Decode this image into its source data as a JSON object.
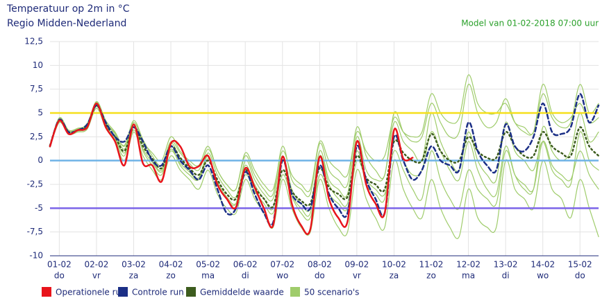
{
  "chart_data": {
    "type": "line",
    "title": "Temperatuur op 2m in °C",
    "subtitle": "Regio Midden-Nederland",
    "annotation": "Model van 01-02-2018 07:00 uur",
    "grid": true,
    "xlim": [
      -0.25,
      14.5
    ],
    "ylim": [
      -10,
      12.5
    ],
    "yticks": [
      -10,
      {
        "value": -7.5,
        "label": "-7,5"
      },
      -5,
      {
        "value": -2.5,
        "label": "-2,5"
      },
      0,
      {
        "value": 2.5,
        "label": "2,5"
      },
      5,
      {
        "value": 7.5,
        "label": "7,5"
      },
      10,
      {
        "value": 12.5,
        "label": "12,5"
      }
    ],
    "xticks": [
      {
        "value": 0,
        "label": "01-02",
        "sublabel": "do"
      },
      {
        "value": 1,
        "label": "02-02",
        "sublabel": "vr"
      },
      {
        "value": 2,
        "label": "03-02",
        "sublabel": "za"
      },
      {
        "value": 3,
        "label": "04-02",
        "sublabel": "zo"
      },
      {
        "value": 4,
        "label": "05-02",
        "sublabel": "ma"
      },
      {
        "value": 5,
        "label": "06-02",
        "sublabel": "di"
      },
      {
        "value": 6,
        "label": "07-02",
        "sublabel": "wo"
      },
      {
        "value": 7,
        "label": "08-02",
        "sublabel": "do"
      },
      {
        "value": 8,
        "label": "09-02",
        "sublabel": "vr"
      },
      {
        "value": 9,
        "label": "10-02",
        "sublabel": "za"
      },
      {
        "value": 10,
        "label": "11-02",
        "sublabel": "zo"
      },
      {
        "value": 11,
        "label": "12-02",
        "sublabel": "ma"
      },
      {
        "value": 12,
        "label": "13-02",
        "sublabel": "di"
      },
      {
        "value": 13,
        "label": "14-02",
        "sublabel": "wo"
      },
      {
        "value": 14,
        "label": "15-02",
        "sublabel": "do"
      }
    ],
    "reference_lines": [
      {
        "value": 5,
        "color": "#f5df1a"
      },
      {
        "value": 0,
        "color": "#6fb3e6"
      },
      {
        "value": -5,
        "color": "#7a63e8"
      }
    ],
    "x": [
      -0.25,
      0,
      0.25,
      0.5,
      0.75,
      1,
      1.25,
      1.5,
      1.75,
      2,
      2.25,
      2.5,
      2.75,
      3,
      3.25,
      3.5,
      3.75,
      4,
      4.25,
      4.5,
      4.75,
      5,
      5.25,
      5.5,
      5.75,
      6,
      6.25,
      6.5,
      6.75,
      7,
      7.25,
      7.5,
      7.75,
      8,
      8.25,
      8.5,
      8.75,
      9,
      9.25,
      9.5,
      9.75,
      10,
      10.25,
      10.5,
      10.75,
      11,
      11.25,
      11.5,
      11.75,
      12,
      12.25,
      12.5,
      12.75,
      13,
      13.25,
      13.5,
      13.75,
      14,
      14.25,
      14.5
    ],
    "series": [
      {
        "name": "Operationele run",
        "color": "#e8141b",
        "values": [
          1.5,
          4.2,
          2.8,
          3.2,
          3.5,
          6.0,
          3.5,
          2.0,
          -0.5,
          3.8,
          -0.3,
          -0.5,
          -2.2,
          1.8,
          1.5,
          -0.6,
          -0.6,
          0.5,
          -2.5,
          -4.0,
          -4.9,
          -0.8,
          -2.8,
          -5.0,
          -6.8,
          0.4,
          -4.5,
          -6.8,
          -7.2,
          0.4,
          -4.0,
          -6.0,
          -6.4,
          2.0,
          -2.5,
          -4.5,
          -5.5,
          3.2,
          0.2,
          0.3,
          null,
          null,
          null,
          null,
          null,
          null,
          null,
          null,
          null,
          null,
          null,
          null,
          null,
          null,
          null,
          null,
          null,
          null,
          null,
          null
        ]
      },
      {
        "name": "Controle run",
        "color": "#1b2f86",
        "values": [
          1.5,
          4.3,
          3,
          3.2,
          3.8,
          5.8,
          4,
          2.5,
          2.0,
          3.5,
          2,
          0,
          -0.5,
          1.5,
          0,
          -1,
          -2,
          -0.5,
          -3,
          -5.5,
          -5,
          -1.2,
          -3.5,
          -5.5,
          -6.5,
          0,
          -3.5,
          -4.5,
          -5,
          -0.5,
          -3.5,
          -5,
          -5.5,
          1.5,
          -2,
          -4,
          -5.5,
          2.5,
          0,
          -2,
          -1,
          1.5,
          0,
          -0.5,
          -1,
          4,
          1,
          -0.5,
          -1,
          3.8,
          1.5,
          1,
          2.5,
          6,
          3,
          2.8,
          3.5,
          7,
          4,
          5.8
        ]
      },
      {
        "name": "Gemiddelde waarde",
        "color": "#3d5c1e",
        "values": [
          1.6,
          4.2,
          3,
          3.2,
          3.6,
          5.8,
          3.8,
          2.5,
          1.0,
          3.5,
          1.5,
          0.2,
          -0.8,
          1.5,
          0.3,
          -0.8,
          -1.5,
          0,
          -2,
          -3.5,
          -4,
          -1,
          -2.8,
          -4,
          -4.8,
          -1,
          -3.2,
          -4.2,
          -4.5,
          -0.8,
          -2.8,
          -3.5,
          -3.8,
          0.5,
          -1.8,
          -2.5,
          -3,
          2,
          0.8,
          0,
          0,
          2.8,
          1,
          0,
          0,
          2.5,
          1,
          0.3,
          0.3,
          3,
          1.5,
          0.5,
          0.5,
          3,
          1.5,
          0.8,
          0.5,
          3.5,
          1.5,
          0.5
        ]
      },
      {
        "name": "50 scenario's",
        "color": "#9fcc6b",
        "members": [
          [
            1.6,
            4.5,
            3.2,
            3.4,
            3.8,
            6.2,
            4.2,
            3,
            1.5,
            4,
            2,
            0.8,
            0,
            2.5,
            1,
            0,
            -0.5,
            1.5,
            -1,
            -2.5,
            -3,
            0.5,
            -1.5,
            -3,
            -3.5,
            1.5,
            -2,
            -3,
            -3.5,
            1.8,
            -1,
            -2,
            -2.5,
            3.5,
            0.5,
            -1,
            -1.5,
            5,
            3,
            2,
            2.5,
            6,
            4,
            2.5,
            3,
            8,
            5,
            3.5,
            4,
            6.5,
            4,
            3,
            3,
            7,
            4.5,
            3.5,
            4,
            8,
            5,
            6
          ],
          [
            1.4,
            4,
            2.8,
            3,
            3.3,
            5.5,
            3.4,
            2,
            0,
            3,
            0.5,
            -1,
            -2,
            0.5,
            -1,
            -2,
            -3,
            -1,
            -3.5,
            -5,
            -5.5,
            -2,
            -4,
            -5.5,
            -7,
            -2,
            -5,
            -7,
            -7.5,
            -2,
            -5,
            -7,
            -7.5,
            -1,
            -4,
            -6,
            -7,
            0,
            -3,
            -5,
            -6,
            -2,
            -5,
            -7,
            -8,
            -3,
            -6,
            -7,
            -7,
            0,
            -3,
            -4,
            -5,
            0,
            -3,
            -4,
            -6,
            -2,
            -5,
            -8
          ],
          [
            1.5,
            4.2,
            3,
            3.1,
            3.5,
            5.9,
            3.6,
            2.2,
            0.5,
            3.8,
            1,
            -0.5,
            -1.5,
            1.2,
            -0.5,
            -1.5,
            -2,
            0.5,
            -2.5,
            -4,
            -4.5,
            0,
            -2,
            -3.5,
            -4,
            0.5,
            -3,
            -4.5,
            -5,
            1,
            -2,
            -3,
            -3.5,
            2.5,
            -1,
            -2,
            -1.5,
            4,
            2,
            1,
            0,
            5,
            2,
            0,
            -1,
            3,
            0,
            -1.5,
            -2,
            4,
            1,
            0,
            -1,
            2,
            -1,
            -2,
            -2.5,
            3,
            0,
            -1
          ],
          [
            1.7,
            4.3,
            3.1,
            3.3,
            3.7,
            6,
            3.9,
            2.8,
            1.2,
            3.6,
            1.8,
            0,
            -1,
            1.8,
            0.2,
            -1,
            -1.8,
            0.8,
            -1.5,
            -3,
            -3.8,
            -0.5,
            -2.5,
            -4,
            -5,
            0,
            -3.5,
            -5,
            -5.5,
            0.5,
            -2.5,
            -4,
            -4.5,
            1,
            -2.5,
            -3.5,
            -4,
            2.5,
            0,
            -1.5,
            -1,
            3,
            1,
            -1,
            -2,
            2,
            -1,
            -3,
            -3.5,
            1.5,
            -1.5,
            -3,
            -3,
            3.5,
            1,
            0,
            1,
            5,
            2,
            3
          ],
          [
            1.5,
            4.1,
            2.9,
            3.2,
            3.6,
            5.7,
            3.7,
            2.4,
            0.8,
            3.2,
            1.2,
            -0.2,
            -1.2,
            1,
            -0.3,
            -1.2,
            -2,
            0.2,
            -2.2,
            -3.8,
            -4.5,
            -1.5,
            -3.2,
            -4.5,
            -5.5,
            -1.5,
            -3.8,
            -5.5,
            -6,
            -1.5,
            -3.5,
            -4.5,
            -5,
            0,
            -2,
            -3,
            -3.5,
            1,
            -1,
            -3,
            -4,
            1,
            -2,
            -4,
            -5,
            -1,
            -3,
            -4,
            -4.5,
            1,
            -1.5,
            -2.5,
            -3,
            2,
            -0.5,
            -1.5,
            -2,
            1,
            -1.5,
            -3
          ],
          [
            1.6,
            4.4,
            3.1,
            3.3,
            3.9,
            6.1,
            4,
            2.9,
            1.6,
            4.2,
            2.2,
            0.5,
            -0.5,
            2,
            0.8,
            -0.3,
            -1,
            1.2,
            -1,
            -2.5,
            -3,
            0.8,
            -1,
            -2.5,
            -3,
            1,
            -1.5,
            -2.5,
            -3,
            2,
            0,
            -1,
            -1.5,
            3,
            1,
            0,
            0.5,
            4.5,
            3,
            2.5,
            3,
            7,
            5,
            4,
            4.5,
            9,
            6,
            5,
            5,
            6,
            4,
            3.5,
            3,
            8,
            5,
            4,
            4.5,
            6,
            4,
            4.5
          ]
        ]
      }
    ]
  }
}
